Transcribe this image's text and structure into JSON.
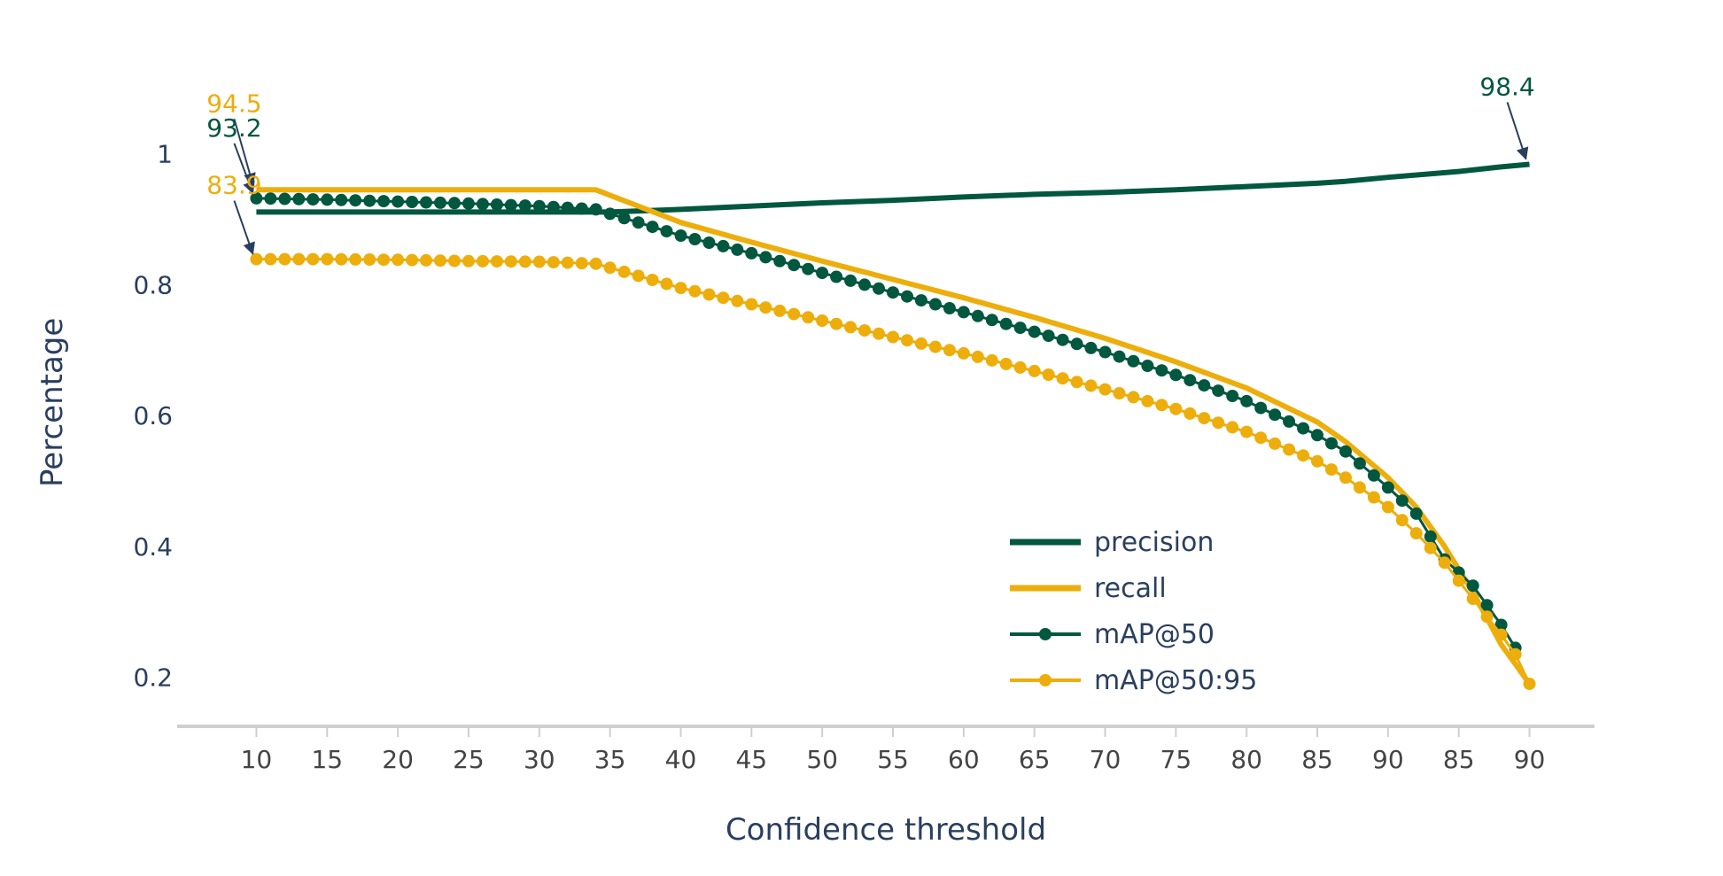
{
  "chart_data": {
    "type": "line",
    "xlabel": "Confidence threshold",
    "ylabel": "Percentage",
    "x_tick_labels": [
      "10",
      "15",
      "20",
      "25",
      "30",
      "35",
      "40",
      "45",
      "50",
      "55",
      "60",
      "65",
      "70",
      "75",
      "80",
      "85",
      "90",
      "85",
      "90"
    ],
    "y_ticks": [
      0.2,
      0.4,
      0.6,
      0.8,
      1
    ],
    "y_tick_labels": [
      "0.2",
      "0.4",
      "0.6",
      "0.8",
      "1"
    ],
    "x_range": [
      4.4,
      104.6
    ],
    "y_range": [
      0.125,
      1.12
    ],
    "grid": false,
    "legend_position": "bottom-right (inside plot)",
    "series": [
      {
        "name": "precision",
        "style": "line",
        "color": "#02573f",
        "x": [
          10,
          20,
          30,
          35,
          40,
          50,
          55,
          60,
          65,
          70,
          75,
          80,
          85,
          87,
          90,
          95,
          98,
          100
        ],
        "y": [
          0.911,
          0.911,
          0.911,
          0.911,
          0.915,
          0.925,
          0.929,
          0.934,
          0.938,
          0.941,
          0.945,
          0.95,
          0.955,
          0.958,
          0.964,
          0.973,
          0.98,
          0.984
        ]
      },
      {
        "name": "recall",
        "style": "line",
        "color": "#edae0c",
        "x": [
          10,
          15,
          20,
          25,
          30,
          34,
          40,
          45,
          50,
          55,
          60,
          65,
          70,
          75,
          80,
          85,
          87,
          90,
          92,
          94,
          96,
          98,
          99,
          100
        ],
        "y": [
          0.945,
          0.945,
          0.945,
          0.945,
          0.945,
          0.945,
          0.895,
          0.865,
          0.836,
          0.808,
          0.78,
          0.75,
          0.718,
          0.682,
          0.642,
          0.59,
          0.56,
          0.505,
          0.46,
          0.4,
          0.33,
          0.25,
          0.22,
          0.19
        ]
      },
      {
        "name": "mAP@50",
        "style": "line+markers",
        "color": "#02573f",
        "x": [
          10,
          15,
          20,
          25,
          30,
          34,
          40,
          45,
          50,
          55,
          60,
          65,
          70,
          75,
          80,
          85,
          87,
          90,
          92,
          94,
          96,
          98,
          99
        ],
        "y": [
          0.932,
          0.93,
          0.927,
          0.924,
          0.92,
          0.915,
          0.875,
          0.848,
          0.818,
          0.788,
          0.758,
          0.728,
          0.697,
          0.662,
          0.622,
          0.57,
          0.545,
          0.49,
          0.45,
          0.38,
          0.34,
          0.28,
          0.245
        ]
      },
      {
        "name": "mAP@50:95",
        "style": "line+markers",
        "color": "#edae0c",
        "x": [
          10,
          15,
          20,
          25,
          30,
          34,
          40,
          45,
          50,
          55,
          60,
          65,
          70,
          75,
          80,
          85,
          87,
          90,
          92,
          94,
          96,
          98,
          99,
          100
        ],
        "y": [
          0.839,
          0.839,
          0.838,
          0.836,
          0.835,
          0.832,
          0.795,
          0.77,
          0.745,
          0.72,
          0.695,
          0.668,
          0.64,
          0.61,
          0.575,
          0.53,
          0.505,
          0.46,
          0.42,
          0.375,
          0.32,
          0.265,
          0.235,
          0.19
        ]
      }
    ],
    "annotations": [
      {
        "text": "94.5",
        "x": 10,
        "y": 0.945,
        "color": "#edae0c"
      },
      {
        "text": "93.2",
        "x": 10,
        "y": 0.932,
        "color": "#02573f"
      },
      {
        "text": "83.9",
        "x": 10,
        "y": 0.839,
        "color": "#edae0c"
      },
      {
        "text": "98.4",
        "x": 100,
        "y": 0.984,
        "color": "#02573f"
      }
    ],
    "colors": {
      "green": "#02573f",
      "gold": "#edae0c",
      "axis_text": "#2a3f5f",
      "tick_text": "#444444",
      "axis_line": "#cfcfcf",
      "arrow": "#2a3f5f"
    }
  }
}
